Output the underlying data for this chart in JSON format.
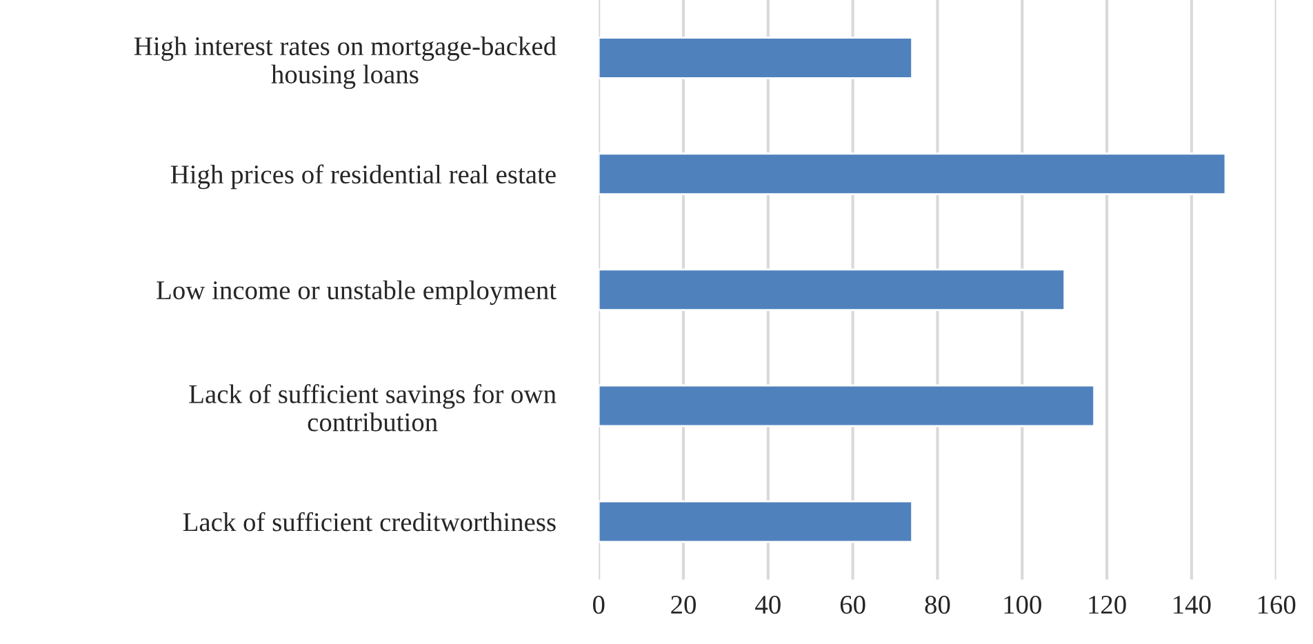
{
  "chart_data": {
    "type": "bar",
    "orientation": "horizontal",
    "categories": [
      "High interest rates on mortgage-backed\nhousing loans",
      "High prices of residential real estate",
      "Low income or unstable employment",
      "Lack of sufficient savings for own\ncontribution",
      "Lack of sufficient creditworthiness"
    ],
    "values": [
      74,
      148,
      110,
      117,
      74
    ],
    "color": "#4f81bd",
    "xlim": [
      0,
      160
    ],
    "xticks": [
      0,
      20,
      40,
      60,
      80,
      100,
      120,
      140,
      160
    ],
    "grid": "x"
  }
}
